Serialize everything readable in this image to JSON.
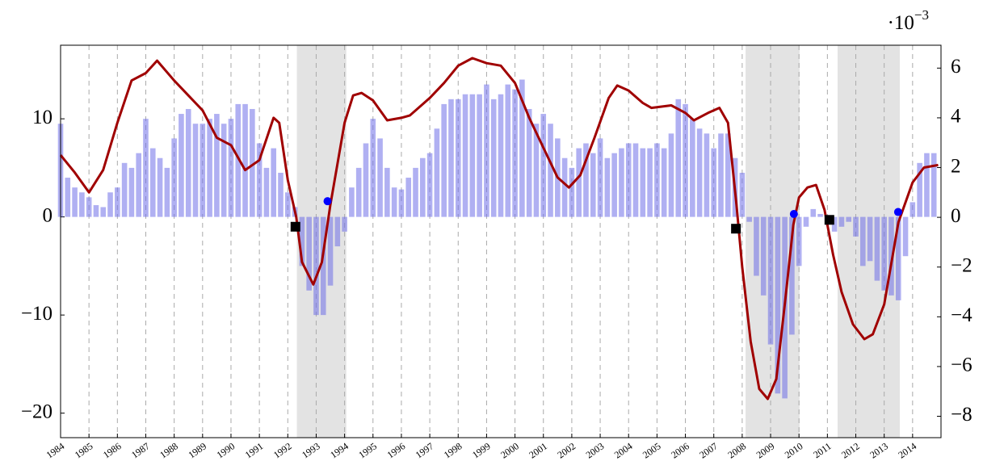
{
  "chart_data": {
    "type": "combo",
    "xlim": [
      1984,
      2015
    ],
    "xticks": [
      1984,
      1985,
      1986,
      1987,
      1988,
      1989,
      1990,
      1991,
      1992,
      1993,
      1994,
      1995,
      1996,
      1997,
      1998,
      1999,
      2000,
      2001,
      2002,
      2003,
      2004,
      2005,
      2006,
      2007,
      2008,
      2009,
      2010,
      2011,
      2012,
      2013,
      2014
    ],
    "ylim": [
      -22.5,
      17.5
    ],
    "yticks": [
      {
        "value": -20,
        "label": "−20"
      },
      {
        "value": -10,
        "label": "−10"
      },
      0,
      10
    ],
    "y2lim": [
      -8.86,
      6.92
    ],
    "y2ticks": [
      {
        "value": -8,
        "label": "−8"
      },
      {
        "value": -6,
        "label": "−6"
      },
      {
        "value": -4,
        "label": "−4"
      },
      {
        "value": -2,
        "label": "−2"
      },
      0,
      2,
      4,
      6
    ],
    "y2_multiplier": "·10",
    "y2_exponent": "−3",
    "grid": true,
    "shaded_regions": [
      [
        1992.32,
        1994.06
      ],
      [
        2008.12,
        2010.02
      ],
      [
        2011.36,
        2013.55
      ]
    ],
    "shade_color": "#e3e3e3",
    "series": [
      {
        "type": "bar",
        "color": "#7070e8",
        "x": [
          1984,
          1984.25,
          1984.5,
          1984.75,
          1985,
          1985.25,
          1985.5,
          1985.75,
          1986,
          1986.25,
          1986.5,
          1986.75,
          1987,
          1987.25,
          1987.5,
          1987.75,
          1988,
          1988.25,
          1988.5,
          1988.75,
          1989,
          1989.25,
          1989.5,
          1989.75,
          1990,
          1990.25,
          1990.5,
          1990.75,
          1991,
          1991.25,
          1991.5,
          1991.75,
          1992,
          1992.25,
          1992.5,
          1992.75,
          1993,
          1993.25,
          1993.5,
          1993.75,
          1994,
          1994.25,
          1994.5,
          1994.75,
          1995,
          1995.25,
          1995.5,
          1995.75,
          1996,
          1996.25,
          1996.5,
          1996.75,
          1997,
          1997.25,
          1997.5,
          1997.75,
          1998,
          1998.25,
          1998.5,
          1998.75,
          1999,
          1999.25,
          1999.5,
          1999.75,
          2000,
          2000.25,
          2000.5,
          2000.75,
          2001,
          2001.25,
          2001.5,
          2001.75,
          2002,
          2002.25,
          2002.5,
          2002.75,
          2003,
          2003.25,
          2003.5,
          2003.75,
          2004,
          2004.25,
          2004.5,
          2004.75,
          2005,
          2005.25,
          2005.5,
          2005.75,
          2006,
          2006.25,
          2006.5,
          2006.75,
          2007,
          2007.25,
          2007.5,
          2007.75,
          2008,
          2008.25,
          2008.5,
          2008.75,
          2009,
          2009.25,
          2009.5,
          2009.75,
          2010,
          2010.25,
          2010.5,
          2010.75,
          2011,
          2011.25,
          2011.5,
          2011.75,
          2012,
          2012.25,
          2012.5,
          2012.75,
          2013,
          2013.25,
          2013.5,
          2013.75,
          2014,
          2014.25,
          2014.5,
          2014.75
        ],
        "values": [
          9.5,
          4,
          3,
          2.5,
          2,
          1.2,
          1,
          2.5,
          3,
          5.5,
          5,
          6.5,
          10,
          7,
          6,
          5,
          8,
          10.5,
          11,
          9.5,
          9.5,
          10,
          10.5,
          9.5,
          10,
          11.5,
          11.5,
          11,
          7.5,
          5,
          7,
          4.5,
          2.5,
          1,
          -5,
          -7.5,
          -10,
          -10,
          -7,
          -3,
          -1.5,
          3,
          5,
          7.5,
          10,
          8,
          5,
          3,
          2.8,
          4,
          5,
          6,
          6.5,
          9,
          11.5,
          12,
          12,
          12.5,
          12.5,
          12.5,
          13.5,
          12,
          12.5,
          13.5,
          13,
          14,
          11,
          9.5,
          10.5,
          9.5,
          8,
          6,
          5,
          7,
          7.5,
          6.5,
          8,
          6,
          6.5,
          7,
          7.5,
          7.5,
          7,
          7,
          7.5,
          7,
          8.5,
          12,
          11.5,
          10,
          9,
          8.5,
          7,
          8.5,
          8.5,
          6,
          4.5,
          -0.5,
          -6,
          -8,
          -13,
          -18,
          -18.5,
          -12,
          -5,
          -1,
          0.8,
          0.3,
          -0.8,
          -1.5,
          -1,
          -0.5,
          -2,
          -5,
          -4.5,
          -6.5,
          -7.5,
          -8,
          -8.5,
          -4,
          1.5,
          5.5,
          6.5,
          6.5
        ]
      },
      {
        "type": "line",
        "axis": "y2",
        "color": "#a00000",
        "x": [
          1984,
          1984.5,
          1985,
          1985.5,
          1986,
          1986.5,
          1987,
          1987.4,
          1988,
          1988.5,
          1989,
          1989.5,
          1990,
          1990.5,
          1991,
          1991.5,
          1991.7,
          1992,
          1992.3,
          1992.5,
          1992.9,
          1993.2,
          1993.5,
          1994,
          1994.3,
          1994.6,
          1995,
          1995.5,
          1996,
          1996.3,
          1997,
          1997.5,
          1998,
          1998.5,
          1999,
          1999.5,
          2000,
          2000.5,
          2001,
          2001.5,
          2001.9,
          2002.3,
          2002.8,
          2003.3,
          2003.6,
          2004,
          2004.5,
          2004.8,
          2005.5,
          2006,
          2006.3,
          2006.8,
          2007.2,
          2007.5,
          2007.8,
          2008,
          2008.3,
          2008.6,
          2008.9,
          2009.2,
          2009.5,
          2009.8,
          2010,
          2010.3,
          2010.6,
          2010.9,
          2011.2,
          2011.5,
          2011.9,
          2012.3,
          2012.6,
          2013,
          2013.5,
          2014,
          2014.4,
          2014.9
        ],
        "values": [
          2.5,
          1.8,
          1.0,
          1.9,
          3.8,
          5.5,
          5.8,
          6.3,
          5.5,
          4.9,
          4.3,
          3.2,
          2.9,
          1.9,
          2.3,
          4.0,
          3.8,
          1.5,
          0.0,
          -1.8,
          -2.7,
          -1.8,
          0.5,
          3.8,
          4.9,
          5.0,
          4.7,
          3.9,
          4.0,
          4.1,
          4.8,
          5.4,
          6.1,
          6.4,
          6.2,
          6.1,
          5.4,
          4.0,
          2.8,
          1.6,
          1.2,
          1.7,
          3.2,
          4.8,
          5.3,
          5.1,
          4.6,
          4.4,
          4.5,
          4.2,
          3.9,
          4.2,
          4.4,
          3.8,
          0.5,
          -2.0,
          -5.0,
          -6.9,
          -7.3,
          -6.5,
          -3.5,
          -0.3,
          0.8,
          1.2,
          1.3,
          0.3,
          -1.5,
          -3.0,
          -4.3,
          -4.9,
          -4.7,
          -3.5,
          -0.2,
          1.4,
          2.0,
          2.1
        ]
      },
      {
        "type": "scatter",
        "marker": "square",
        "color": "#000000",
        "x": [
          1992.27,
          2007.78,
          2011.07
        ],
        "values": [
          -1.0,
          -1.2,
          -0.3
        ]
      },
      {
        "type": "scatter",
        "marker": "circle",
        "color": "#0000ff",
        "x": [
          1993.4,
          2009.82,
          2013.49
        ],
        "values": [
          1.6,
          0.3,
          0.5
        ]
      }
    ]
  }
}
